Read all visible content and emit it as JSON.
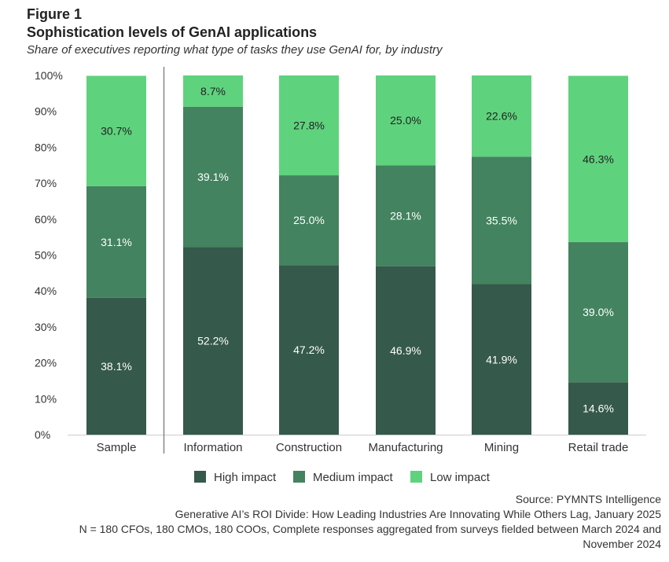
{
  "figure_label": "Figure 1",
  "title": "Sophistication levels of GenAI applications",
  "subtitle": "Share of executives reporting what type of tasks they use GenAI for, by industry",
  "colors": {
    "high": "#35594a",
    "medium": "#43835f",
    "low": "#5fd27d",
    "axis": "#cccccc",
    "divider": "#888888"
  },
  "chart_data": {
    "type": "bar",
    "stacked": true,
    "categories": [
      "Sample",
      "Information",
      "Construction",
      "Manufacturing",
      "Mining",
      "Retail trade"
    ],
    "series": [
      {
        "name": "High impact",
        "key": "high",
        "values": [
          38.1,
          52.2,
          47.2,
          46.9,
          41.9,
          14.6
        ],
        "labels": [
          "38.1%",
          "52.2%",
          "47.2%",
          "46.9%",
          "41.9%",
          "14.6%"
        ]
      },
      {
        "name": "Medium impact",
        "key": "medium",
        "values": [
          31.1,
          39.1,
          25.0,
          28.1,
          35.5,
          39.0
        ],
        "labels": [
          "31.1%",
          "39.1%",
          "25.0%",
          "28.1%",
          "35.5%",
          "39.0%"
        ]
      },
      {
        "name": "Low impact",
        "key": "low",
        "values": [
          30.7,
          8.7,
          27.8,
          25.0,
          22.6,
          46.3
        ],
        "labels": [
          "30.7%",
          "8.7%",
          "27.8%",
          "25.0%",
          "22.6%",
          "46.3%"
        ]
      }
    ],
    "yticks": [
      "0%",
      "10%",
      "20%",
      "30%",
      "40%",
      "50%",
      "60%",
      "70%",
      "80%",
      "90%",
      "100%"
    ],
    "ylim": [
      0,
      100
    ],
    "legend": "bottom"
  },
  "footer": {
    "source": "Source: PYMNTS Intelligence",
    "report": "Generative AI’s ROI Divide: How Leading Industries Are Innovating While Others Lag, January 2025",
    "note_line1": "N = 180 CFOs, 180 CMOs, 180 COOs, Complete responses aggregated from surveys fielded between March 2024 and",
    "note_line2": "November 2024"
  }
}
